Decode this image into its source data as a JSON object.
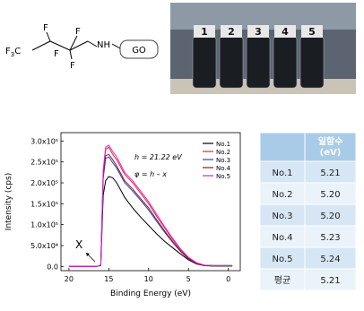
{
  "structure": {
    "labels": [
      "F",
      "F",
      "F",
      "F",
      "NH",
      "GO"
    ],
    "subscript_group": [
      "F",
      "3",
      "C"
    ]
  },
  "photo": {
    "labels": [
      "1",
      "2",
      "3",
      "4",
      "5"
    ]
  },
  "chart_data": {
    "type": "line",
    "x_label": "Binding Energy (eV)",
    "y_label": "Intensity (cps)",
    "annotations": [
      "h = 21.22 eV",
      "φ = h – x",
      "X"
    ],
    "x": [
      20,
      16.5,
      16,
      15.7,
      15.4,
      15,
      14.5,
      14,
      13,
      12,
      11,
      10,
      9,
      8,
      7,
      6,
      5,
      4,
      3,
      2,
      1,
      0,
      -0.5
    ],
    "series": [
      {
        "name": "No.1",
        "color": "#000000",
        "values": [
          0,
          0,
          2000,
          170000,
          205000,
          215000,
          212000,
          200000,
          165000,
          140000,
          118000,
          98000,
          78000,
          60000,
          45000,
          30000,
          16000,
          6000,
          2000,
          1000,
          1000,
          1000,
          1000
        ]
      },
      {
        "name": "No.2",
        "color": "#e8262a",
        "values": [
          0,
          0,
          3000,
          225000,
          280000,
          285000,
          268000,
          255000,
          220000,
          200000,
          175000,
          150000,
          120000,
          92000,
          65000,
          40000,
          21000,
          8000,
          3000,
          2000,
          2000,
          2000,
          2000
        ]
      },
      {
        "name": "No.3",
        "color": "#2a3fd0",
        "values": [
          0,
          0,
          3000,
          210000,
          258000,
          262000,
          248000,
          235000,
          200000,
          180000,
          158000,
          135000,
          108000,
          82000,
          58000,
          36000,
          18000,
          7000,
          3000,
          2000,
          2000,
          2000,
          2000
        ]
      },
      {
        "name": "No.4",
        "color": "#8b1a1a",
        "values": [
          0,
          0,
          3000,
          215000,
          265000,
          268000,
          255000,
          240000,
          205000,
          185000,
          162000,
          140000,
          112000,
          85000,
          60000,
          37000,
          19000,
          7000,
          3000,
          2000,
          2000,
          2000,
          2000
        ]
      },
      {
        "name": "No.5",
        "color": "#e020e0",
        "values": [
          0,
          0,
          3000,
          230000,
          285000,
          290000,
          275000,
          262000,
          225000,
          205000,
          180000,
          155000,
          125000,
          95000,
          68000,
          42000,
          22000,
          9000,
          3000,
          2000,
          2000,
          2000,
          2000
        ]
      }
    ],
    "xlim": [
      21,
      -1.5
    ],
    "ylim": [
      -10000,
      320000
    ],
    "xticks": [
      20,
      15,
      10,
      5,
      0
    ],
    "yticks": [
      {
        "value": 0,
        "label": "0.0"
      },
      {
        "value": 50000,
        "label": "5.0x10⁴"
      },
      {
        "value": 100000,
        "label": "1.0x10⁵"
      },
      {
        "value": 150000,
        "label": "1.5x10⁵"
      },
      {
        "value": 200000,
        "label": "2.0x10⁵"
      },
      {
        "value": 250000,
        "label": "2.5x10⁵"
      },
      {
        "value": 300000,
        "label": "3.0x10⁵"
      }
    ],
    "legend": "upper right"
  },
  "table": {
    "header": [
      "일함수\n(eV)"
    ],
    "rows": [
      [
        "No.1",
        "5.21"
      ],
      [
        "No.2",
        "5.20"
      ],
      [
        "No.3",
        "5.20"
      ],
      [
        "No.4",
        "5.23"
      ],
      [
        "No.5",
        "5.24"
      ],
      [
        "평균",
        "5.21"
      ]
    ]
  }
}
